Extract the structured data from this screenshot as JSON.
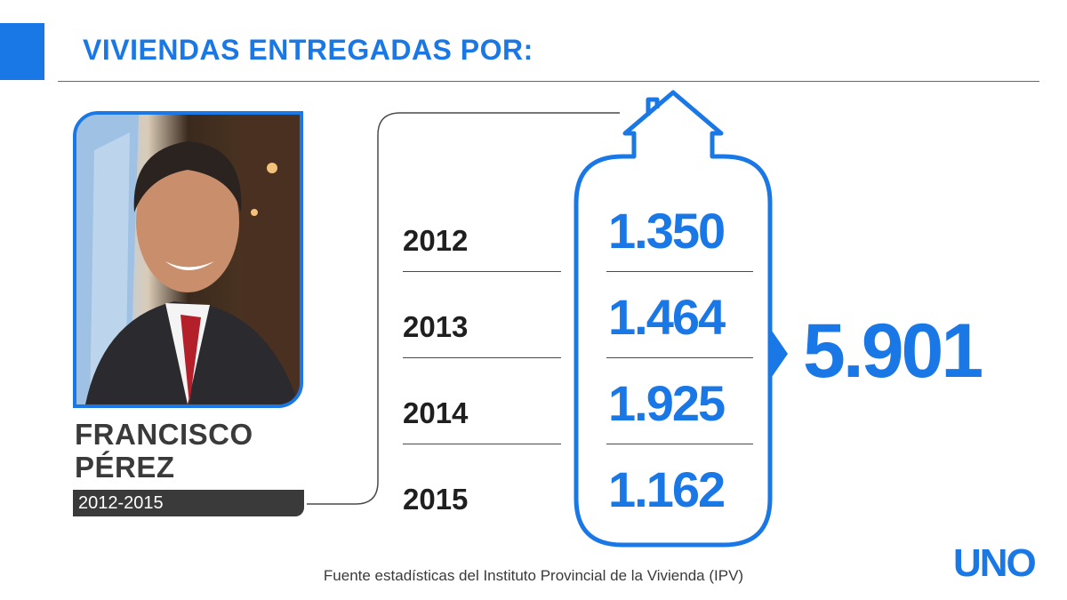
{
  "header": {
    "title": "VIVIENDAS ENTREGADAS POR:"
  },
  "person": {
    "name_line1": "FRANCISCO",
    "name_line2": "PÉREZ",
    "period": "2012-2015"
  },
  "chart_data": {
    "type": "table",
    "title": "VIVIENDAS ENTREGADAS POR:",
    "categories": [
      "2012",
      "2013",
      "2014",
      "2015"
    ],
    "values": [
      1350,
      1464,
      1925,
      1162
    ],
    "value_labels": [
      "1.350",
      "1.464",
      "1.925",
      "1.162"
    ],
    "total": 5901,
    "total_label": "5.901"
  },
  "footer": {
    "source": "Fuente estadísticas del Instituto Provincial de la Vivienda (IPV)",
    "logo": "UNO"
  },
  "colors": {
    "accent": "#1a78e6",
    "dark": "#3a3a3a",
    "text": "#1f1f1f"
  },
  "icons": {
    "house": "house-icon",
    "arrow": "arrow-right-icon"
  }
}
